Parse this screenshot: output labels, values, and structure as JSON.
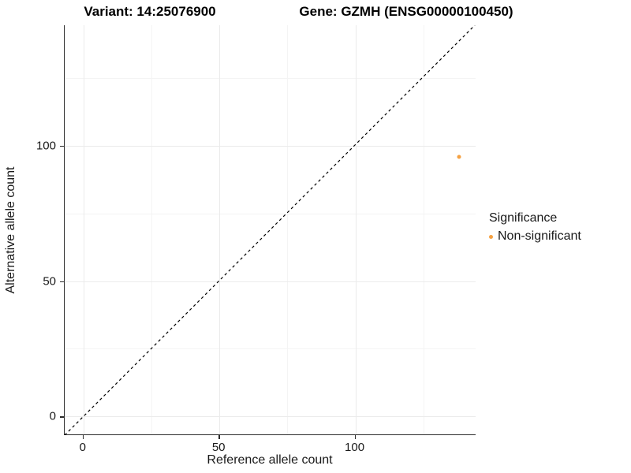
{
  "titles": {
    "variant": "Variant: 14:25076900",
    "gene": "Gene: GZMH (ENSG00000100450)"
  },
  "axes": {
    "x": {
      "label": "Reference allele count",
      "ticks": [
        0,
        50,
        100
      ],
      "minor_ticks": [
        25,
        75,
        125
      ],
      "range": [
        -6.9,
        144.5
      ]
    },
    "y": {
      "label": "Alternative allele count",
      "ticks": [
        0,
        50,
        100
      ],
      "minor_ticks": [
        25,
        75,
        125
      ],
      "range": [
        -6.9,
        144.5
      ]
    }
  },
  "legend": {
    "title": "Significance",
    "items": [
      {
        "label": "Non-significant",
        "color": "#F5A142"
      }
    ]
  },
  "colors": {
    "point": "#F5A142",
    "grid_major": "#ebebeb",
    "grid_minor": "#f4f4f4",
    "axis_line": "#2b2b2b",
    "reference_line": "#000000"
  },
  "chart_data": {
    "type": "scatter",
    "title": "Variant: 14:25076900 | Gene: GZMH (ENSG00000100450)",
    "xlabel": "Reference allele count",
    "ylabel": "Alternative allele count",
    "xlim": [
      -6.9,
      144.5
    ],
    "ylim": [
      -6.9,
      144.5
    ],
    "x_ticks": [
      0,
      50,
      100
    ],
    "y_ticks": [
      0,
      50,
      100
    ],
    "grid": "major+minor",
    "legend_position": "right",
    "series": [
      {
        "name": "Non-significant",
        "color": "#F5A142",
        "points": [
          {
            "x": 138,
            "y": 96
          }
        ]
      }
    ],
    "reference_line": {
      "type": "identity",
      "slope": 1,
      "intercept": 0,
      "style": "dashed",
      "color": "#000000"
    }
  }
}
